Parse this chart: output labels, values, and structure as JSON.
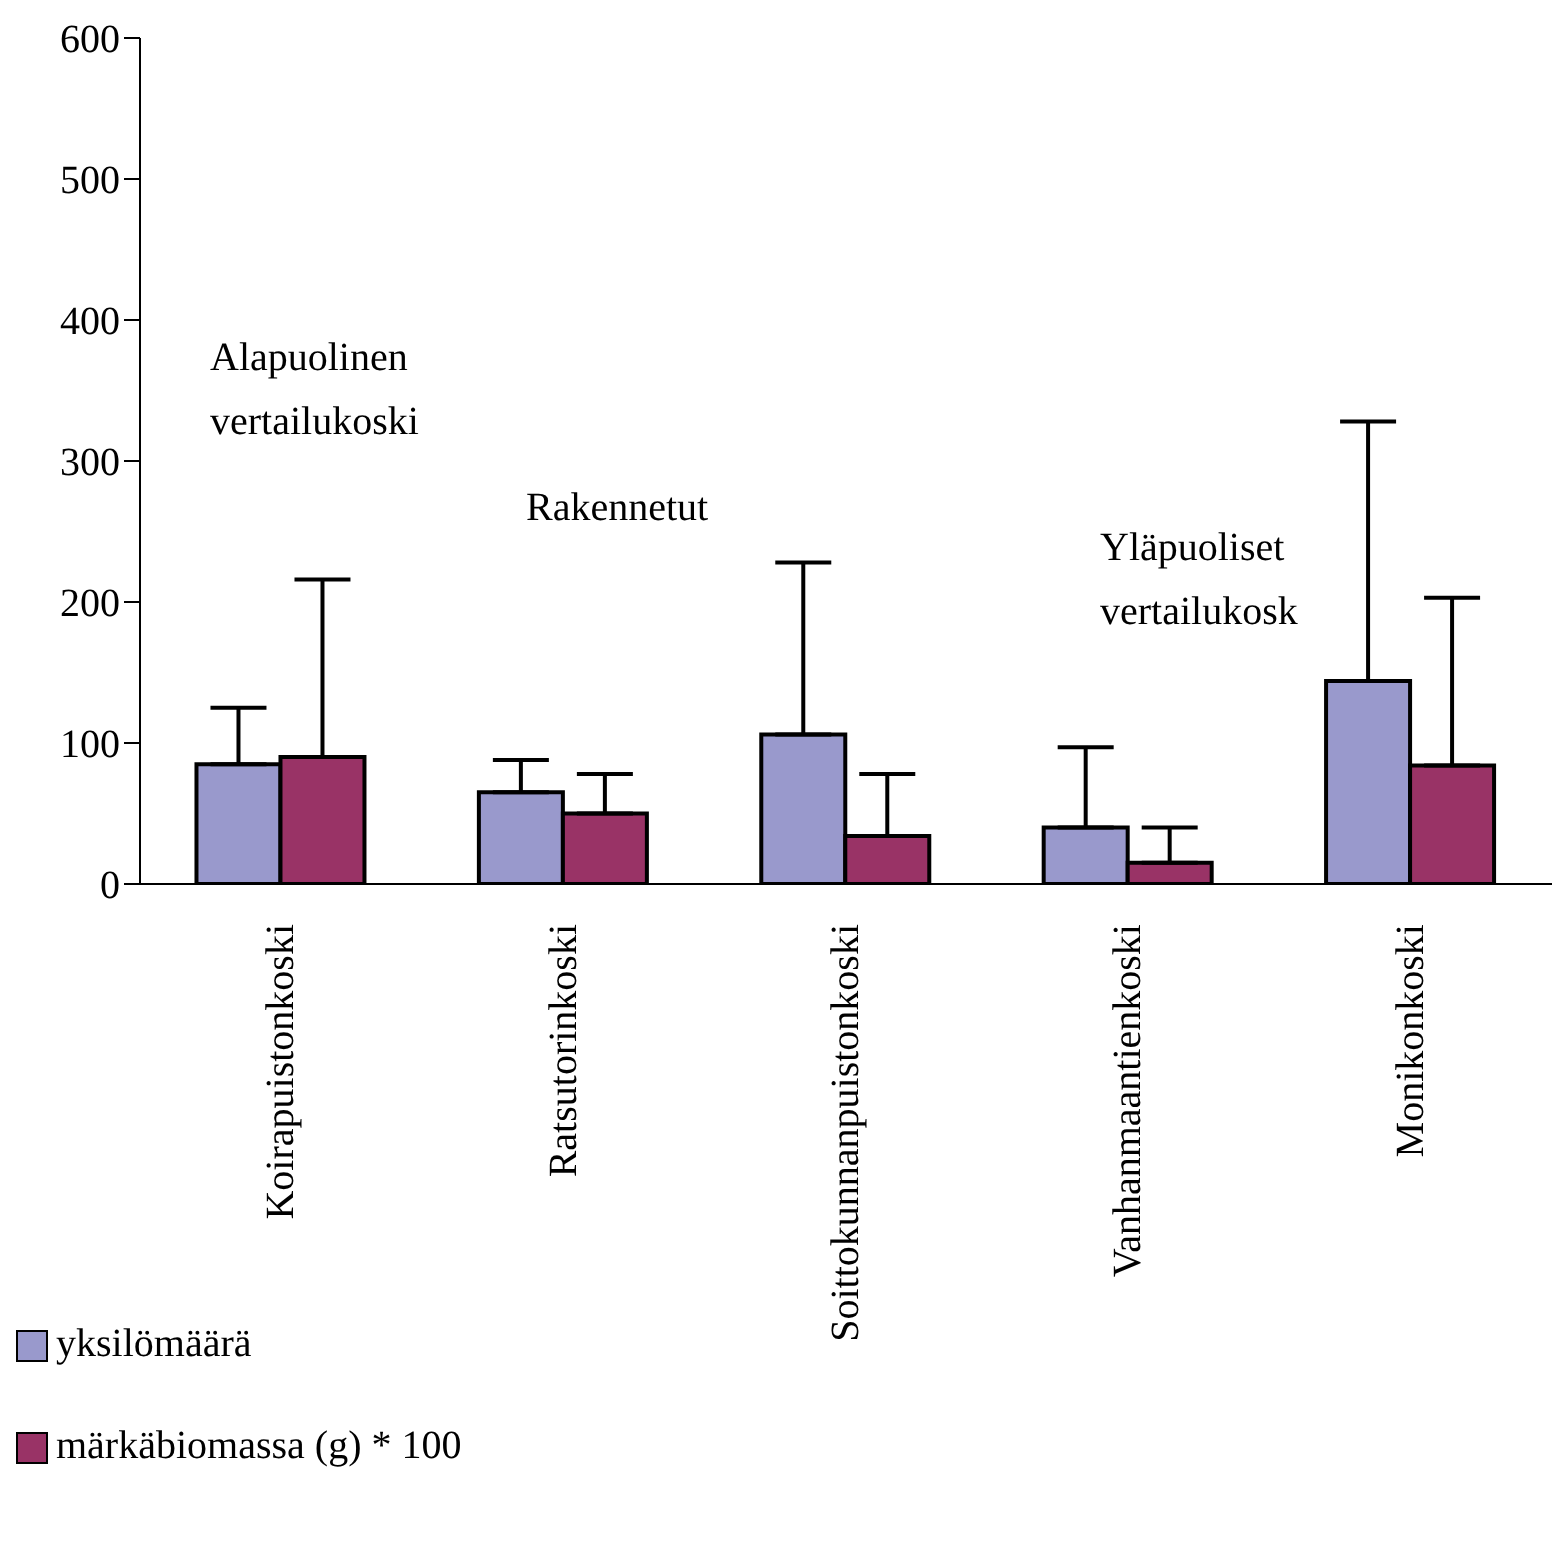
{
  "chart_data": {
    "type": "bar",
    "categories": [
      "Koirapuistonkoski",
      "Ratsutorinkoski",
      "Soittokunnanpuistonkoski",
      "Vanhanmaantienkoski",
      "Monikonkoski"
    ],
    "series": [
      {
        "name": "yksilömäärä",
        "color": "#9999cc",
        "values": [
          85,
          65,
          106,
          40,
          144
        ],
        "errors": [
          [
            85,
            125
          ],
          [
            65,
            88
          ],
          [
            106,
            228
          ],
          [
            40,
            97
          ],
          [
            144,
            328
          ]
        ]
      },
      {
        "name": "märkäbiomassa (g) * 100",
        "color": "#993366",
        "values": [
          90,
          50,
          34,
          15,
          84
        ],
        "errors": [
          [
            90,
            216
          ],
          [
            50,
            78
          ],
          [
            34,
            78
          ],
          [
            15,
            40
          ],
          [
            84,
            203
          ]
        ]
      }
    ],
    "ylim": [
      0,
      600
    ],
    "yticks": [
      0,
      100,
      200,
      300,
      400,
      500,
      600
    ],
    "legend": "bottom left",
    "annotations": [
      "Alapuolinen vertailukoski",
      "Rakennetut",
      "Yläpuoliset vertailukosk"
    ]
  }
}
